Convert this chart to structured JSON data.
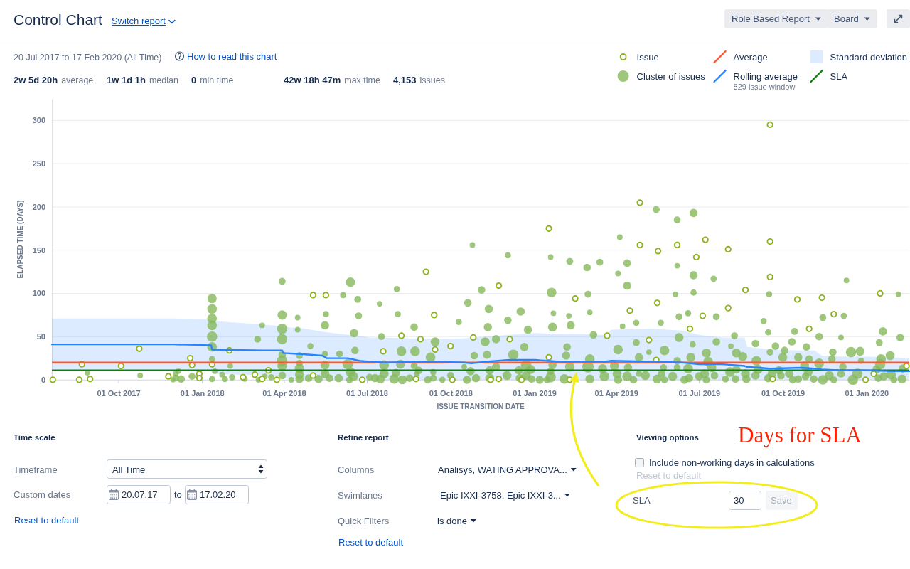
{
  "chart_data": {
    "type": "scatter",
    "title": "Control Chart",
    "subtitle": "20 Jul 2017 to 17 Feb 2020 (All Time)",
    "xlabel": "ISSUE TRANSITION DATE",
    "ylabel": "ELAPSED TIME (DAYS)",
    "annotations": [
      "Switch report",
      "Role Based Report",
      "Board",
      "How to read this chart",
      "2w 5d 20h",
      "average",
      "1w 1d 1h",
      "median",
      "0",
      "min time",
      "42w 18h 47m",
      "max time",
      "4,153",
      "issues",
      "829 issue window",
      "Standard deviation",
      "Time scale",
      "Timeframe",
      "All Time",
      "Custom dates",
      "20.07.17",
      "to",
      "17.02.20",
      "Reset to default",
      "Refine report",
      "Columns",
      "Analisys, WATING APPROVA...",
      "Swimlanes",
      "Epic IXXI-3758, Epic IXXI-3...",
      "Quick Filters",
      "is done",
      "Reset to default",
      "Viewing options",
      "Include non-working days in calculations",
      "Reset to default",
      "SLA",
      "30",
      "Save",
      "Days for SLA"
    ],
    "xlim": [
      "2017-07-20",
      "2020-02-17"
    ],
    "xticks": [
      {
        "value": "2017-10-01",
        "label": "01 Oct 2017"
      },
      {
        "value": "2018-01-01",
        "label": "01 Jan 2018"
      },
      {
        "value": "2018-04-01",
        "label": "01 Apr 2018"
      },
      {
        "value": "2018-07-01",
        "label": "01 Jul 2018"
      },
      {
        "value": "2018-10-01",
        "label": "01 Oct 2018"
      },
      {
        "value": "2019-01-01",
        "label": "01 Jan 2019"
      },
      {
        "value": "2019-04-01",
        "label": "01 Apr 2019"
      },
      {
        "value": "2019-07-01",
        "label": "01 Jul 2019"
      },
      {
        "value": "2019-10-01",
        "label": "01 Oct 2019"
      },
      {
        "value": "2020-01-01",
        "label": "01 Jan 2020"
      }
    ],
    "ylim": [
      0,
      325
    ],
    "yticks": [
      0,
      50,
      100,
      150,
      200,
      250,
      300
    ],
    "grid": "y",
    "legend": "top right",
    "ref_lines": [
      {
        "axis": "y",
        "value": 20,
        "label": "Average",
        "color": "#ff5630"
      },
      {
        "axis": "y",
        "value": 11,
        "label": "SLA",
        "color": "#0e7d0e"
      }
    ],
    "series": [
      {
        "name": "Issue",
        "marker": "circle",
        "color": "#8db21f",
        "x": [
          "2017-07-21",
          "2017-08-19",
          "2017-08-22",
          "2017-08-31",
          "2017-10-04",
          "2017-10-24",
          "2017-11-25",
          "2017-12-19",
          "2017-12-21",
          "2017-12-29",
          "2017-12-29",
          "2018-01-12",
          "2018-01-31",
          "2018-02-15",
          "2018-02-28",
          "2018-03-08",
          "2018-03-15",
          "2018-03-24",
          "2018-05-03",
          "2018-05-03",
          "2018-05-17",
          "2018-06-26",
          "2018-07-19",
          "2018-08-08",
          "2018-08-24",
          "2018-08-29",
          "2018-09-04",
          "2018-09-13",
          "2018-09-14",
          "2018-10-01",
          "2018-10-03",
          "2018-10-26",
          "2018-11-14",
          "2018-11-23",
          "2018-11-23",
          "2018-12-05",
          "2018-12-18",
          "2019-01-17",
          "2019-01-17",
          "2019-02-09",
          "2019-02-15",
          "2019-03-22",
          "2019-04-16",
          "2019-04-27",
          "2019-04-27",
          "2019-05-07",
          "2019-05-15",
          "2019-05-16",
          "2019-05-17",
          "2019-06-07",
          "2019-06-21",
          "2019-06-28",
          "2019-07-05",
          "2019-07-08",
          "2019-08-02",
          "2019-08-02",
          "2019-08-21",
          "2019-09-17",
          "2019-09-17",
          "2019-09-17",
          "2019-09-20",
          "2019-10-17",
          "2019-10-30",
          "2019-11-13",
          "2019-11-26",
          "2019-12-31",
          "2020-01-09",
          "2020-01-16",
          "2020-02-14"
        ],
        "values": [
          0,
          0,
          18,
          1,
          16,
          36,
          4,
          25,
          17,
          7,
          2,
          18,
          34,
          3,
          6,
          1,
          11,
          0,
          98,
          5,
          98,
          0,
          33,
          51,
          1,
          47,
          125,
          75,
          35,
          39,
          0,
          49,
          0,
          109,
          1,
          47,
          0,
          175,
          26,
          0,
          94,
          51,
          80,
          205,
          156,
          46,
          23,
          89,
          149,
          156,
          59,
          142,
          74,
          162,
          151,
          83,
          104,
          295,
          160,
          119,
          1,
          93,
          59,
          95,
          76,
          0,
          7,
          100,
          16
        ]
      },
      {
        "name": "Cluster of issues",
        "type": "bubble",
        "marker": "circle",
        "color": "#86b95b",
        "x": [
          "2017-08-28",
          "2017-10-25",
          "2017-11-30",
          "2017-12-03",
          "2017-12-03",
          "2017-12-06",
          "2017-12-09",
          "2017-12-21",
          "2018-01-12",
          "2018-01-12",
          "2018-01-12",
          "2018-01-12",
          "2018-01-12",
          "2018-01-12",
          "2018-01-12",
          "2018-01-12",
          "2018-01-15",
          "2018-01-23",
          "2018-01-26",
          "2018-02-01",
          "2018-02-03",
          "2018-02-17",
          "2018-03-03",
          "2018-03-04",
          "2018-03-08",
          "2018-03-11",
          "2018-03-18",
          "2018-03-30",
          "2018-03-30",
          "2018-03-30",
          "2018-03-30",
          "2018-03-30",
          "2018-03-30",
          "2018-03-30",
          "2018-03-30",
          "2018-04-09",
          "2018-04-16",
          "2018-04-16",
          "2018-04-18",
          "2018-04-18",
          "2018-04-18",
          "2018-04-18",
          "2018-04-18",
          "2018-04-28",
          "2018-04-30",
          "2018-05-09",
          "2018-05-16",
          "2018-05-16",
          "2018-05-16",
          "2018-05-16",
          "2018-05-17",
          "2018-05-21",
          "2018-05-31",
          "2018-06-01",
          "2018-06-05",
          "2018-06-10",
          "2018-06-12",
          "2018-06-13",
          "2018-06-13",
          "2018-06-16",
          "2018-06-17",
          "2018-06-18",
          "2018-06-21",
          "2018-06-22",
          "2018-07-04",
          "2018-07-10",
          "2018-07-15",
          "2018-07-16",
          "2018-07-17",
          "2018-07-20",
          "2018-07-20",
          "2018-07-31",
          "2018-08-02",
          "2018-08-03",
          "2018-08-04",
          "2018-08-07",
          "2018-08-08",
          "2018-08-09",
          "2018-08-17",
          "2018-08-22",
          "2018-08-22",
          "2018-08-23",
          "2018-08-25",
          "2018-08-27",
          "2018-09-06",
          "2018-09-09",
          "2018-09-12",
          "2018-09-12",
          "2018-09-14",
          "2018-09-22",
          "2018-10-01",
          "2018-10-10",
          "2018-10-16",
          "2018-10-19",
          "2018-10-20",
          "2018-10-23",
          "2018-10-25",
          "2018-10-27",
          "2018-10-29",
          "2018-11-04",
          "2018-11-08",
          "2018-11-10",
          "2018-11-11",
          "2018-11-12",
          "2018-11-13",
          "2018-11-13",
          "2018-11-20",
          "2018-11-20",
          "2018-12-02",
          "2018-12-03",
          "2018-12-03",
          "2018-12-09",
          "2018-12-15",
          "2018-12-16",
          "2018-12-17",
          "2018-12-21",
          "2018-12-23",
          "2018-12-23",
          "2018-12-25",
          "2018-12-28",
          "2018-12-29",
          "2019-01-07",
          "2019-01-15",
          "2019-01-19",
          "2019-01-19",
          "2019-01-19",
          "2019-01-20",
          "2019-01-21",
          "2019-01-21",
          "2019-01-22",
          "2019-02-03",
          "2019-02-05",
          "2019-02-06",
          "2019-02-08",
          "2019-02-09",
          "2019-02-09",
          "2019-02-10",
          "2019-02-28",
          "2019-03-01",
          "2019-03-01",
          "2019-03-03",
          "2019-03-03",
          "2019-03-03",
          "2019-03-07",
          "2019-03-14",
          "2019-03-17",
          "2019-03-19",
          "2019-03-30",
          "2019-04-02",
          "2019-04-03",
          "2019-04-03",
          "2019-04-03",
          "2019-04-05",
          "2019-04-08",
          "2019-04-13",
          "2019-04-13",
          "2019-04-13",
          "2019-04-14",
          "2019-04-20",
          "2019-04-23",
          "2019-04-23",
          "2019-04-26",
          "2019-04-26",
          "2019-05-03",
          "2019-05-07",
          "2019-05-15",
          "2019-05-16",
          "2019-05-20",
          "2019-05-21",
          "2019-05-23",
          "2019-05-24",
          "2019-05-24",
          "2019-06-02",
          "2019-06-05",
          "2019-06-07",
          "2019-06-07",
          "2019-06-07",
          "2019-06-07",
          "2019-06-09",
          "2019-06-09",
          "2019-06-15",
          "2019-06-19",
          "2019-06-19",
          "2019-06-20",
          "2019-06-22",
          "2019-06-24",
          "2019-06-25",
          "2019-06-25",
          "2019-06-25",
          "2019-07-01",
          "2019-07-07",
          "2019-07-09",
          "2019-07-09",
          "2019-07-11",
          "2019-07-15",
          "2019-07-17",
          "2019-07-18",
          "2019-07-20",
          "2019-07-20",
          "2019-07-30",
          "2019-08-04",
          "2019-08-05",
          "2019-08-09",
          "2019-08-10",
          "2019-08-11",
          "2019-08-11",
          "2019-08-18",
          "2019-08-21",
          "2019-08-22",
          "2019-09-01",
          "2019-09-01",
          "2019-09-02",
          "2019-09-04",
          "2019-09-10",
          "2019-09-15",
          "2019-09-15",
          "2019-09-16",
          "2019-09-17",
          "2019-09-19",
          "2019-09-23",
          "2019-09-27",
          "2019-09-29",
          "2019-10-01",
          "2019-10-03",
          "2019-10-08",
          "2019-10-11",
          "2019-10-12",
          "2019-10-14",
          "2019-10-18",
          "2019-10-18",
          "2019-10-25",
          "2019-10-26",
          "2019-10-27",
          "2019-10-29",
          "2019-10-30",
          "2019-11-04",
          "2019-11-10",
          "2019-11-10",
          "2019-11-14",
          "2019-11-14",
          "2019-11-21",
          "2019-11-24",
          "2019-11-25",
          "2019-11-26",
          "2019-12-04",
          "2019-12-04",
          "2019-12-06",
          "2019-12-07",
          "2019-12-10",
          "2019-12-15",
          "2019-12-17",
          "2019-12-22",
          "2019-12-25",
          "2019-12-26",
          "2020-01-12",
          "2020-01-14",
          "2020-01-15",
          "2020-01-16",
          "2020-01-17",
          "2020-01-19",
          "2020-01-20",
          "2020-01-27",
          "2020-01-28",
          "2020-01-31",
          "2020-02-05",
          "2020-02-07",
          "2020-02-09",
          "2020-02-10"
        ],
        "values": [
          8,
          5,
          0,
          2,
          7,
          10,
          1,
          4,
          94,
          82,
          71,
          63,
          50,
          38,
          24,
          1,
          10,
          6,
          1,
          16,
          3,
          1,
          47,
          0,
          63,
          4,
          3,
          114,
          75,
          59,
          47,
          29,
          22,
          16,
          5,
          0,
          72,
          58,
          28,
          19,
          13,
          6,
          1,
          2,
          39,
          1,
          63,
          30,
          17,
          7,
          76,
          2,
          2,
          30,
          98,
          18,
          0,
          113,
          9,
          4,
          54,
          34,
          93,
          74,
          3,
          2,
          88,
          1,
          50,
          17,
          7,
          1,
          8,
          105,
          76,
          18,
          33,
          0,
          2,
          61,
          16,
          33,
          7,
          11,
          0,
          26,
          9,
          2,
          44,
          0,
          5,
          67,
          15,
          0,
          89,
          10,
          156,
          28,
          2,
          104,
          44,
          29,
          61,
          82,
          11,
          2,
          47,
          15,
          5,
          144,
          69,
          29,
          11,
          2,
          79,
          38,
          17,
          5,
          58,
          12,
          1,
          0,
          0,
          142,
          10,
          3,
          101,
          61,
          17,
          77,
          1,
          28,
          38,
          74,
          137,
          15,
          63,
          130,
          99,
          15,
          78,
          24,
          1,
          52,
          136,
          13,
          4,
          16,
          7,
          123,
          35,
          0,
          165,
          62,
          135,
          109,
          4,
          14,
          0,
          66,
          43,
          26,
          7,
          5,
          32,
          197,
          1,
          66,
          7,
          14,
          34,
          0,
          4,
          99,
          185,
          132,
          22,
          14,
          73,
          49,
          0,
          77,
          13,
          2,
          26,
          41,
          193,
          121,
          101,
          4,
          7,
          31,
          0,
          21,
          14,
          117,
          5,
          73,
          44,
          1,
          9,
          39,
          51,
          1,
          31,
          12,
          27,
          7,
          1,
          42,
          5,
          22,
          12,
          68,
          55,
          2,
          99,
          32,
          7,
          39,
          11,
          5,
          26,
          34,
          7,
          44,
          0,
          56,
          26,
          1,
          16,
          4,
          38,
          9,
          24,
          1,
          50,
          19,
          72,
          0,
          5,
          24,
          32,
          0,
          49,
          7,
          15,
          74,
          115,
          32,
          0,
          7,
          33,
          22,
          12,
          2,
          43,
          18,
          24,
          56,
          4,
          28,
          6,
          0,
          99,
          49,
          1,
          13
        ],
        "sizes": [
          0.21,
          0.24,
          0.21,
          0.37,
          0.24,
          0.24,
          0.44,
          0.37,
          0.67,
          0.72,
          0.72,
          0.72,
          0.83,
          0.72,
          0.3,
          0.3,
          0.24,
          0.24,
          0.3,
          0.24,
          0.3,
          0.24,
          0.37,
          0.24,
          0.24,
          0.24,
          0.3,
          0.37,
          0.67,
          0.83,
          0.83,
          0.44,
          0.83,
          0.72,
          0.44,
          0.24,
          0.24,
          0.24,
          0.37,
          0.37,
          0.72,
          0.62,
          0.53,
          0.44,
          0.3,
          0.53,
          0.53,
          0.3,
          0.62,
          0.62,
          0.3,
          0.44,
          0.53,
          0.37,
          0.3,
          0.83,
          0.37,
          0.67,
          0.72,
          0.72,
          0.53,
          0.44,
          0.37,
          0.37,
          0.37,
          0.53,
          0.24,
          0.62,
          0.37,
          0.72,
          0.62,
          0.72,
          0.53,
          0.3,
          0.3,
          0.62,
          0.72,
          0.62,
          0.44,
          0.44,
          0.37,
          0.72,
          0.24,
          0.44,
          0.44,
          0.72,
          0.3,
          0.37,
          0.62,
          0.3,
          0.37,
          0.3,
          0.24,
          0.53,
          0.44,
          0.53,
          0.24,
          0.44,
          0.53,
          0.44,
          0.62,
          0.53,
          0.53,
          0.53,
          0.53,
          0.62,
          0.53,
          0.53,
          0.62,
          0.3,
          0.44,
          0.83,
          0.53,
          0.53,
          0.53,
          0.53,
          0.83,
          0.62,
          0.53,
          0.62,
          0.44,
          0.53,
          0.37,
          0.24,
          0.44,
          0.83,
          0.72,
          0.62,
          0.53,
          0.24,
          0.72,
          0.53,
          0.44,
          0.24,
          0.37,
          0.72,
          0.53,
          0.44,
          0.37,
          1,
          0.24,
          0.72,
          0.62,
          0.44,
          0.37,
          0.62,
          0.72,
          0.62,
          0.62,
          0.24,
          0.72,
          0.53,
          0.24,
          0.24,
          0.44,
          0.53,
          0.72,
          0.53,
          0.44,
          0.3,
          0.37,
          0.53,
          0.3,
          0.62,
          0.24,
          0.37,
          0.62,
          0.3,
          0.44,
          0.37,
          0.72,
          0.37,
          0.62,
          0.24,
          0.37,
          0.24,
          0.44,
          0.37,
          0.37,
          0.62,
          0.53,
          0.3,
          0.72,
          0.53,
          0.62,
          0.3,
          0.53,
          0.53,
          0.3,
          0.53,
          0.62,
          0.62,
          0.44,
          0.72,
          0.62,
          0.3,
          0.44,
          0.37,
          0.44,
          0.37,
          0.72,
          0.24,
          0.37,
          0.44,
          0.62,
          0.53,
          0.62,
          0.62,
          0.53,
          0.44,
          0.53,
          0.72,
          0.62,
          0.3,
          0.3,
          0.53,
          0.3,
          0.37,
          0.53,
          0.44,
          0.53,
          0.44,
          0.62,
          0.44,
          0.53,
          0.44,
          0.44,
          0.37,
          0.53,
          0.44,
          0.62,
          0.44,
          0.44,
          0.62,
          0.44,
          0.44,
          0.44,
          0.72,
          0.37,
          0.72,
          0.62,
          0.44,
          0.44,
          0.37,
          0.24,
          0.44,
          0.44,
          0.3,
          0.24,
          0.83,
          0.83,
          0.83,
          0.62,
          0.3,
          0.53,
          0.44,
          0.37,
          0.83,
          0.72,
          0.53,
          0.53,
          0.62,
          0.72,
          0.37,
          0.24,
          0.44,
          0.62,
          0.53
        ]
      },
      {
        "name": "Rolling average",
        "type": "line",
        "color": "#2684ff",
        "x": [
          "2017-07-20",
          "2017-12-01",
          "2018-01-11",
          "2018-01-12",
          "2018-03-08",
          "2018-03-30",
          "2018-03-31",
          "2018-04-16",
          "2018-04-17",
          "2018-05-13",
          "2018-05-18",
          "2018-06-10",
          "2018-06-23",
          "2018-07-04",
          "2018-07-20",
          "2018-09-12",
          "2018-10-16",
          "2018-10-24",
          "2018-11-09",
          "2018-12-05",
          "2019-01-02",
          "2019-01-29",
          "2019-03-19",
          "2019-03-27",
          "2019-05-10",
          "2019-06-13",
          "2019-07-01",
          "2019-07-27",
          "2019-08-20",
          "2019-08-23",
          "2019-09-17",
          "2019-10-21",
          "2019-11-05",
          "2019-11-13",
          "2019-12-04",
          "2019-12-25",
          "2020-01-31",
          "2020-02-17"
        ],
        "values": [
          41,
          41,
          40,
          35,
          34,
          34,
          31,
          30,
          30,
          28,
          25,
          25,
          22,
          21,
          20,
          21,
          20,
          19,
          21,
          23,
          23,
          21,
          21,
          22,
          21,
          20,
          18,
          18,
          16,
          15,
          13,
          14,
          13,
          12,
          11,
          11,
          10,
          10
        ],
        "lower": [
          12,
          12,
          12,
          7,
          5,
          5,
          1,
          1,
          0,
          0,
          0,
          0,
          0,
          0,
          0,
          0,
          0,
          0,
          0,
          0,
          0,
          0,
          0,
          0,
          0,
          0,
          0,
          0,
          0,
          0,
          0,
          0,
          0,
          0,
          0,
          0,
          0,
          0
        ],
        "upper": [
          71,
          71,
          70,
          68,
          64,
          62,
          61,
          60,
          60,
          56,
          55,
          52,
          51,
          49,
          49,
          47,
          48,
          49,
          50,
          52,
          54,
          53,
          52,
          58,
          59,
          57,
          52,
          49,
          49,
          38,
          35,
          34,
          34,
          28,
          27,
          27,
          26,
          25
        ]
      }
    ]
  }
}
